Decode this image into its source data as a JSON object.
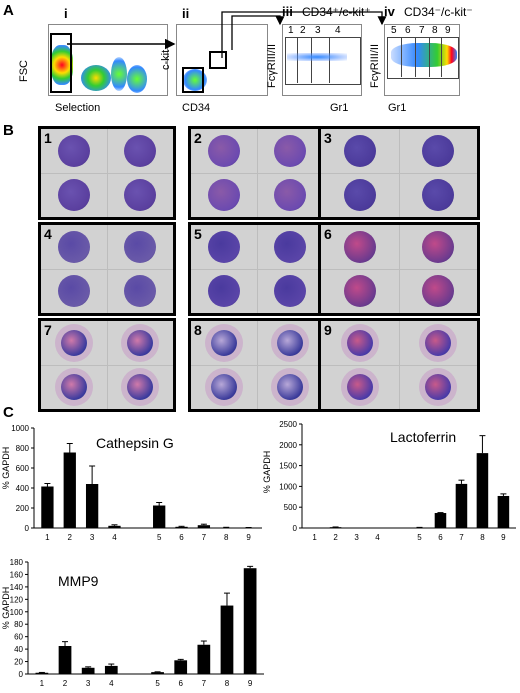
{
  "panels": {
    "a": "A",
    "b": "B",
    "c": "C"
  },
  "flow": {
    "i": {
      "roman": "i",
      "ylabel": "FSC",
      "xlabel": "Selection"
    },
    "ii": {
      "roman": "ii",
      "ylabel": "c-kit",
      "xlabel": "CD34"
    },
    "iii": {
      "roman": "iii",
      "title": "CD34⁺/c-kit⁺",
      "ylabel": "FcγRIII/II",
      "xlabel": "Gr1",
      "gates": [
        "1",
        "2",
        "3",
        "4"
      ]
    },
    "iv": {
      "roman": "iv",
      "title": "CD34⁻/c-kit⁻",
      "ylabel": "FcγRIII/II",
      "xlabel": "Gr1",
      "gates": [
        "5",
        "6",
        "7",
        "8",
        "9"
      ]
    }
  },
  "cell_groups": [
    "1",
    "2",
    "3",
    "4",
    "5",
    "6",
    "7",
    "8",
    "9"
  ],
  "chart_data": [
    {
      "type": "bar",
      "title": "Cathepsin G",
      "ylabel": "% GAPDH",
      "categories": [
        "1",
        "2",
        "3",
        "4",
        "5",
        "6",
        "7",
        "8",
        "9"
      ],
      "values": [
        415,
        755,
        440,
        22,
        225,
        12,
        28,
        5,
        3
      ],
      "errors": [
        30,
        90,
        180,
        10,
        30,
        5,
        10,
        2,
        2
      ],
      "ylim": [
        0,
        1000
      ],
      "yticks": [
        "0",
        "200",
        "400",
        "600",
        "800",
        "1000"
      ]
    },
    {
      "type": "bar",
      "title": "Lactoferrin",
      "ylabel": "% GAPDH",
      "categories": [
        "1",
        "2",
        "3",
        "4",
        "5",
        "6",
        "7",
        "8",
        "9"
      ],
      "values": [
        2,
        20,
        2,
        2,
        10,
        360,
        1060,
        1800,
        770
      ],
      "errors": [
        0,
        5,
        0,
        0,
        5,
        10,
        90,
        420,
        50
      ],
      "ylim": [
        0,
        2500
      ],
      "yticks": [
        "0",
        "500",
        "1000",
        "1500",
        "2000",
        "2500"
      ]
    },
    {
      "type": "bar",
      "title": "MMP9",
      "ylabel": "% GAPDH",
      "categories": [
        "1",
        "2",
        "3",
        "4",
        "5",
        "6",
        "7",
        "8",
        "9"
      ],
      "values": [
        2,
        45,
        10,
        13,
        3,
        22,
        47,
        110,
        170
      ],
      "errors": [
        0.5,
        7,
        1.5,
        3,
        0.5,
        1.5,
        6,
        20,
        3
      ],
      "ylim": [
        0,
        180
      ],
      "yticks": [
        "0",
        "20",
        "40",
        "60",
        "80",
        "100",
        "120",
        "140",
        "160",
        "180"
      ]
    }
  ]
}
